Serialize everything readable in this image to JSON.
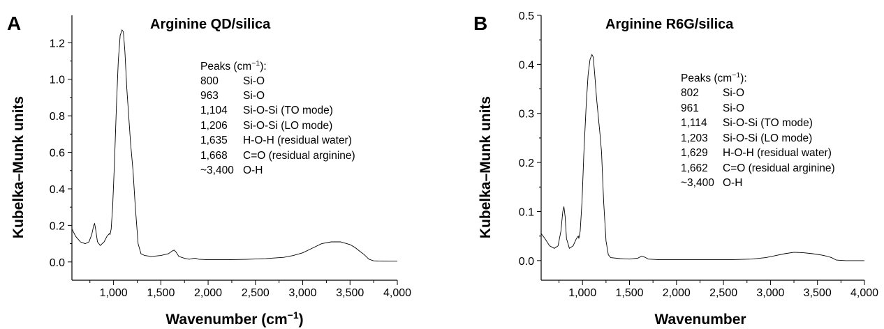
{
  "chart_data": [
    {
      "type": "line",
      "panel_label": "A",
      "title": "Arginine QD/silica",
      "xlabel_main": "Wavenumber (cm",
      "xlabel_sup": "−1",
      "xlabel_end": ")",
      "ylabel": "Kubelka–Munk units",
      "xlim": [
        560,
        4000
      ],
      "ylim": [
        -0.1,
        1.35
      ],
      "xticks": [
        1000,
        1500,
        2000,
        2500,
        3000,
        3500,
        4000
      ],
      "xtick_labels": [
        "1,000",
        "1,500",
        "2,000",
        "2,500",
        "3,000",
        "3,500",
        "4,000"
      ],
      "yticks": [
        0.0,
        0.2,
        0.4,
        0.6,
        0.8,
        1.0,
        1.2
      ],
      "ytick_labels": [
        "0.0",
        "0.2",
        "0.4",
        "0.6",
        "0.8",
        "1.0",
        "1.2"
      ],
      "peaks_header_main": "Peaks (cm",
      "peaks_header_sup": "−1",
      "peaks_header_end": "):",
      "peaks": [
        {
          "wn": "800",
          "assign": "Si-O"
        },
        {
          "wn": "963",
          "assign": "Si-O"
        },
        {
          "wn": "1,104",
          "assign": "Si-O-Si (TO mode)"
        },
        {
          "wn": "1,206",
          "assign": "Si-O-Si (LO mode)"
        },
        {
          "wn": "1,635",
          "assign": "H-O-H (residual water)"
        },
        {
          "wn": "1,668",
          "assign": "C=O (residual arginine)"
        },
        {
          "wn": "~3,400",
          "assign": "O-H"
        }
      ],
      "series": [
        {
          "x": [
            560,
            600,
            650,
            700,
            740,
            770,
            790,
            800,
            810,
            830,
            860,
            900,
            930,
            955,
            963,
            975,
            990,
            1010,
            1030,
            1050,
            1070,
            1090,
            1104,
            1120,
            1140,
            1160,
            1180,
            1206,
            1230,
            1260,
            1290,
            1330,
            1400,
            1500,
            1580,
            1620,
            1640,
            1660,
            1690,
            1750,
            1800,
            1850,
            1870,
            1900,
            2000,
            2200,
            2400,
            2600,
            2800,
            2900,
            3000,
            3100,
            3200,
            3300,
            3400,
            3500,
            3550,
            3600,
            3650,
            3700,
            3750,
            3800,
            3900,
            4000
          ],
          "y": [
            0.18,
            0.14,
            0.11,
            0.1,
            0.11,
            0.15,
            0.2,
            0.21,
            0.18,
            0.11,
            0.09,
            0.11,
            0.14,
            0.155,
            0.15,
            0.18,
            0.3,
            0.55,
            0.85,
            1.1,
            1.24,
            1.27,
            1.26,
            1.15,
            0.95,
            0.8,
            0.65,
            0.5,
            0.3,
            0.1,
            0.045,
            0.035,
            0.03,
            0.035,
            0.045,
            0.06,
            0.065,
            0.055,
            0.03,
            0.02,
            0.015,
            0.02,
            0.02,
            0.015,
            0.012,
            0.012,
            0.014,
            0.018,
            0.025,
            0.035,
            0.05,
            0.075,
            0.1,
            0.11,
            0.11,
            0.095,
            0.08,
            0.06,
            0.04,
            0.015,
            0.006,
            0.005,
            0.004,
            0.004
          ]
        }
      ]
    },
    {
      "type": "line",
      "panel_label": "B",
      "title": "Arginine R6G/silica",
      "xlabel_main": "Wavenumber",
      "xlabel_sup": "",
      "xlabel_end": "",
      "ylabel": "Kubelka–Munk units",
      "xlim": [
        560,
        4000
      ],
      "ylim": [
        -0.04,
        0.5
      ],
      "xticks": [
        1000,
        1500,
        2000,
        2500,
        3000,
        3500,
        4000
      ],
      "xtick_labels": [
        "1,000",
        "1,500",
        "2,000",
        "2,500",
        "3,000",
        "3,500",
        "4,000"
      ],
      "yticks": [
        0.0,
        0.1,
        0.2,
        0.3,
        0.4,
        0.5
      ],
      "ytick_labels": [
        "0.0",
        "0.1",
        "0.2",
        "0.3",
        "0.4",
        "0.5"
      ],
      "peaks_header_main": "Peaks (cm",
      "peaks_header_sup": "−1",
      "peaks_header_end": "):",
      "peaks": [
        {
          "wn": "802",
          "assign": "Si-O"
        },
        {
          "wn": "961",
          "assign": "Si-O"
        },
        {
          "wn": "1,114",
          "assign": "Si-O-Si (TO mode)"
        },
        {
          "wn": "1,203",
          "assign": "Si-O-Si (LO mode)"
        },
        {
          "wn": "1,629",
          "assign": "H-O-H (residual water)"
        },
        {
          "wn": "1,662",
          "assign": "C=O (residual arginine)"
        },
        {
          "wn": "~3,400",
          "assign": "O-H"
        }
      ],
      "series": [
        {
          "x": [
            560,
            600,
            650,
            700,
            740,
            770,
            790,
            802,
            815,
            830,
            860,
            900,
            935,
            955,
            961,
            975,
            995,
            1015,
            1040,
            1060,
            1080,
            1100,
            1114,
            1130,
            1150,
            1170,
            1190,
            1203,
            1225,
            1250,
            1275,
            1300,
            1400,
            1500,
            1590,
            1629,
            1662,
            1700,
            1800,
            2000,
            2300,
            2600,
            2800,
            2950,
            3050,
            3150,
            3250,
            3350,
            3450,
            3550,
            3600,
            3650,
            3700,
            3800,
            3900,
            4000
          ],
          "y": [
            0.055,
            0.045,
            0.03,
            0.025,
            0.03,
            0.06,
            0.1,
            0.11,
            0.09,
            0.045,
            0.025,
            0.03,
            0.045,
            0.05,
            0.045,
            0.06,
            0.12,
            0.22,
            0.32,
            0.38,
            0.41,
            0.42,
            0.415,
            0.38,
            0.33,
            0.29,
            0.25,
            0.22,
            0.12,
            0.04,
            0.012,
            0.006,
            0.004,
            0.003,
            0.005,
            0.009,
            0.007,
            0.003,
            0.002,
            0.002,
            0.002,
            0.002,
            0.003,
            0.006,
            0.01,
            0.014,
            0.017,
            0.016,
            0.014,
            0.011,
            0.009,
            0.006,
            0.001,
            0.0,
            0.0,
            0.0
          ]
        }
      ]
    }
  ]
}
